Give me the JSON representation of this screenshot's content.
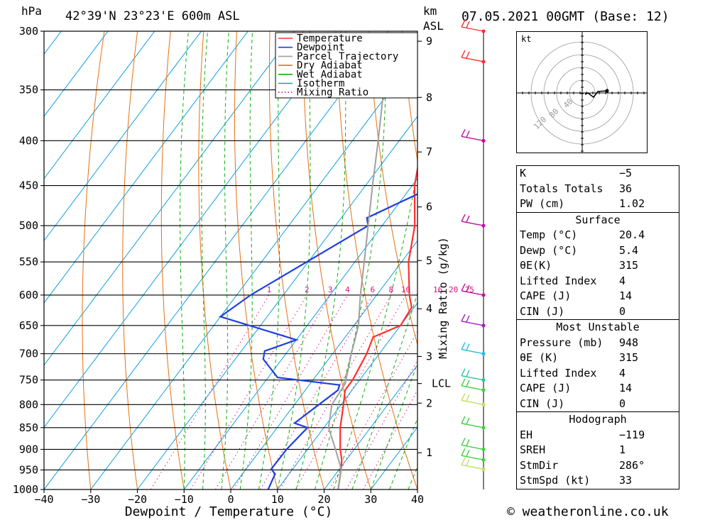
{
  "header": {
    "hpa_label": "hPa",
    "location": "42°39'N  23°23'E  600m  ASL",
    "km_label": "km",
    "asl_label": "ASL",
    "datetime": "07.05.2021  00GMT  (Base: 12)"
  },
  "chart_data": {
    "type": "line",
    "xlabel": "Dewpoint / Temperature (°C)",
    "x_ticks": [
      -40,
      -30,
      -20,
      -10,
      0,
      10,
      20,
      30,
      40
    ],
    "x_tick_labels": [
      "−40",
      "−30",
      "−20",
      "−10",
      "0",
      "10",
      "20",
      "30",
      "40"
    ],
    "xlim": [
      -40,
      40
    ],
    "pressure_levels": [
      300,
      350,
      400,
      450,
      500,
      550,
      600,
      650,
      700,
      750,
      800,
      850,
      900,
      950,
      1000
    ],
    "ylim_hpa": [
      300,
      1000
    ],
    "km_ticks": [
      {
        "label": "1",
        "p": 908
      },
      {
        "label": "2",
        "p": 797
      },
      {
        "label": "3",
        "p": 705
      },
      {
        "label": "4",
        "p": 622
      },
      {
        "label": "5",
        "p": 548
      },
      {
        "label": "6",
        "p": 476
      },
      {
        "label": "7",
        "p": 412
      },
      {
        "label": "8",
        "p": 357
      },
      {
        "label": "9",
        "p": 308
      }
    ],
    "lcl": {
      "label": "LCL",
      "p": 757
    },
    "mixing_ratio_axis_label": "Mixing Ratio (g/kg)",
    "mixing_ratio_labels": [
      "1",
      "2",
      "3",
      "4",
      "6",
      "8",
      "10",
      "16",
      "20",
      "25"
    ],
    "mixing_ratio_values": [
      1,
      2,
      3,
      4,
      6,
      8,
      10,
      16,
      20,
      25
    ],
    "legend": {
      "entries": [
        "Temperature",
        "Dewpoint",
        "Parcel Trajectory",
        "Dry Adiabat",
        "Wet Adiabat",
        "Isotherm",
        "Mixing Ratio"
      ],
      "colors": [
        "#ff3030",
        "#2040e0",
        "#a0a0a0",
        "#e87010",
        "#10b010",
        "#10a0e0",
        "#e01080"
      ],
      "position": "top-right"
    },
    "series": [
      {
        "name": "Temperature",
        "color": "#ff3030",
        "points": [
          [
            1000,
            23
          ],
          [
            960,
            21
          ],
          [
            948,
            20.4
          ],
          [
            925,
            19
          ],
          [
            900,
            17
          ],
          [
            850,
            13.5
          ],
          [
            800,
            10.5
          ],
          [
            770,
            8.5
          ],
          [
            750,
            8.5
          ],
          [
            700,
            7.3
          ],
          [
            670,
            6
          ],
          [
            650,
            10
          ],
          [
            620,
            9.5
          ],
          [
            600,
            7
          ],
          [
            550,
            1.5
          ],
          [
            500,
            -3
          ],
          [
            450,
            -9.5
          ],
          [
            400,
            -15
          ],
          [
            350,
            -20.5
          ],
          [
            340,
            -22.5
          ],
          [
            300,
            -28
          ]
        ]
      },
      {
        "name": "Dewpoint",
        "color": "#2040e0",
        "points": [
          [
            1000,
            8
          ],
          [
            960,
            7
          ],
          [
            948,
            5.4
          ],
          [
            900,
            5.5
          ],
          [
            850,
            6.5
          ],
          [
            840,
            3
          ],
          [
            770,
            7
          ],
          [
            760,
            6.5
          ],
          [
            745,
            -8
          ],
          [
            710,
            -14
          ],
          [
            695,
            -15
          ],
          [
            675,
            -10
          ],
          [
            635,
            -30
          ],
          [
            600,
            -27
          ],
          [
            500,
            -13
          ],
          [
            490,
            -14.5
          ],
          [
            450,
            -5
          ],
          [
            400,
            -2
          ],
          [
            380,
            -6
          ],
          [
            355,
            -4
          ],
          [
            345,
            -6
          ],
          [
            330,
            -8
          ],
          [
            315,
            -7
          ],
          [
            300,
            -17
          ]
        ]
      },
      {
        "name": "Parcel Trajectory",
        "color": "#a0a0a0",
        "points": [
          [
            1000,
            23
          ],
          [
            948,
            20.4
          ],
          [
            900,
            16
          ],
          [
            850,
            11
          ],
          [
            800,
            8
          ],
          [
            757,
            7.5
          ],
          [
            700,
            4
          ],
          [
            650,
            1
          ],
          [
            600,
            -3.5
          ],
          [
            550,
            -8
          ],
          [
            500,
            -13
          ],
          [
            450,
            -18.5
          ],
          [
            400,
            -24.5
          ],
          [
            350,
            -31.5
          ],
          [
            320,
            -36.5
          ],
          [
            310,
            -37.5
          ]
        ]
      }
    ],
    "wind_barbs": [
      {
        "p": 948,
        "color": "#c0e060"
      },
      {
        "p": 925,
        "color": "#40d040"
      },
      {
        "p": 900,
        "color": "#40d040"
      },
      {
        "p": 850,
        "color": "#40d040"
      },
      {
        "p": 800,
        "color": "#c0e060"
      },
      {
        "p": 770,
        "color": "#40d040"
      },
      {
        "p": 750,
        "color": "#30c0a0"
      },
      {
        "p": 700,
        "color": "#20c0e0"
      },
      {
        "p": 650,
        "color": "#a020c0"
      },
      {
        "p": 600,
        "color": "#c010a0"
      },
      {
        "p": 500,
        "color": "#c010a0"
      },
      {
        "p": 400,
        "color": "#c010a0"
      },
      {
        "p": 325,
        "color": "#ff3030"
      },
      {
        "p": 300,
        "color": "#ff3030"
      }
    ],
    "hodograph": {
      "unit": "kt",
      "ring_labels": [
        "40",
        "80",
        "120"
      ]
    }
  },
  "indices": {
    "k_label": "K",
    "k_value": "−5",
    "tt_label": "Totals Totals",
    "tt_value": "36",
    "pw_label": "PW (cm)",
    "pw_value": "1.02"
  },
  "surface": {
    "title": "Surface",
    "temp_label": "Temp (°C)",
    "temp_value": "20.4",
    "dewp_label": "Dewp (°C)",
    "dewp_value": "5.4",
    "theta_label": "θE(K)",
    "theta_value": "315",
    "li_label": "Lifted Index",
    "li_value": "4",
    "cape_label": "CAPE (J)",
    "cape_value": "14",
    "cin_label": "CIN (J)",
    "cin_value": "0"
  },
  "most_unstable": {
    "title": "Most Unstable",
    "pressure_label": "Pressure (mb)",
    "pressure_value": "948",
    "theta_label": "θE (K)",
    "theta_value": "315",
    "li_label": "Lifted Index",
    "li_value": "4",
    "cape_label": "CAPE (J)",
    "cape_value": "14",
    "cin_label": "CIN (J)",
    "cin_value": "0"
  },
  "hodograph_table": {
    "title": "Hodograph",
    "eh_label": "EH",
    "eh_value": "−119",
    "sreh_label": "SREH",
    "sreh_value": "1",
    "stmdir_label": "StmDir",
    "stmdir_value": "286°",
    "stmspd_label": "StmSpd (kt)",
    "stmspd_value": "33"
  },
  "footer": {
    "copyright": "© weatheronline.co.uk"
  }
}
